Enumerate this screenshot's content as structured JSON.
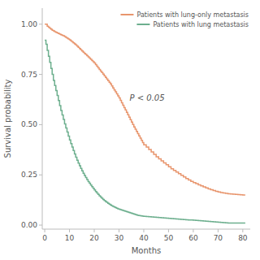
{
  "chart_data": {
    "type": "step",
    "xlabel": "Months",
    "ylabel": "Survival probability",
    "annotation": "P < 0.05",
    "xlim": [
      -1,
      83
    ],
    "ylim": [
      -0.02,
      1.08
    ],
    "xticks": [
      0,
      10,
      20,
      30,
      40,
      50,
      60,
      70,
      80
    ],
    "yticks": [
      {
        "value": 0,
        "label": "0.00"
      },
      0.25,
      {
        "value": 0.5,
        "label": "0.50"
      },
      0.75,
      {
        "value": 1,
        "label": "1.00"
      }
    ],
    "grid": false,
    "legend": "upper right",
    "x": [
      0,
      0.5,
      1,
      1.5,
      2,
      2.5,
      3,
      3.5,
      4,
      4.5,
      5,
      5.5,
      6,
      6.5,
      7,
      7.5,
      8,
      8.5,
      9,
      9.5,
      10,
      10.5,
      11,
      11.5,
      12,
      12.5,
      13,
      13.5,
      14,
      14.5,
      15,
      15.5,
      16,
      16.5,
      17,
      17.5,
      18,
      18.5,
      19,
      19.5,
      20,
      20.5,
      21,
      21.5,
      22,
      22.5,
      23,
      23.5,
      24,
      24.5,
      25,
      25.5,
      26,
      26.5,
      27,
      27.5,
      28,
      28.5,
      29,
      29.5,
      30,
      30.5,
      31,
      31.5,
      32,
      32.5,
      33,
      33.5,
      34,
      34.5,
      35,
      35.5,
      36,
      36.5,
      37,
      37.5,
      38,
      38.5,
      39,
      39.5,
      40,
      41,
      42,
      43,
      44,
      45,
      46,
      47,
      48,
      49,
      50,
      51,
      52,
      53,
      54,
      55,
      56,
      57,
      58,
      59,
      60,
      61,
      62,
      63,
      64,
      65,
      66,
      67,
      68,
      69,
      70,
      71,
      72,
      73,
      74,
      75,
      76,
      77,
      78,
      79,
      80,
      81
    ],
    "series": [
      {
        "name": "Patients with lung-only metastasis",
        "color": "#E8956D",
        "values": [
          1.0,
          1.0,
          0.99,
          0.985,
          0.98,
          0.975,
          0.97,
          0.967,
          0.963,
          0.96,
          0.957,
          0.954,
          0.951,
          0.948,
          0.945,
          0.942,
          0.938,
          0.934,
          0.93,
          0.926,
          0.922,
          0.917,
          0.912,
          0.907,
          0.902,
          0.897,
          0.891,
          0.885,
          0.879,
          0.873,
          0.867,
          0.861,
          0.855,
          0.849,
          0.843,
          0.837,
          0.831,
          0.825,
          0.819,
          0.813,
          0.807,
          0.799,
          0.791,
          0.783,
          0.775,
          0.767,
          0.759,
          0.751,
          0.743,
          0.735,
          0.727,
          0.719,
          0.711,
          0.703,
          0.693,
          0.683,
          0.673,
          0.663,
          0.653,
          0.643,
          0.633,
          0.621,
          0.609,
          0.597,
          0.585,
          0.573,
          0.561,
          0.549,
          0.537,
          0.525,
          0.513,
          0.501,
          0.489,
          0.477,
          0.466,
          0.455,
          0.444,
          0.433,
          0.422,
          0.411,
          0.4,
          0.388,
          0.376,
          0.364,
          0.352,
          0.34,
          0.33,
          0.32,
          0.31,
          0.3,
          0.29,
          0.28,
          0.272,
          0.264,
          0.256,
          0.248,
          0.24,
          0.232,
          0.225,
          0.218,
          0.212,
          0.206,
          0.2,
          0.195,
          0.19,
          0.185,
          0.18,
          0.176,
          0.172,
          0.168,
          0.165,
          0.162,
          0.16,
          0.158,
          0.156,
          0.155,
          0.154,
          0.153,
          0.152,
          0.151,
          0.15,
          0.15
        ]
      },
      {
        "name": "Patients with lung metastasis",
        "color": "#6DAF8E",
        "values": [
          0.92,
          0.9,
          0.87,
          0.84,
          0.81,
          0.78,
          0.75,
          0.72,
          0.695,
          0.67,
          0.645,
          0.62,
          0.595,
          0.57,
          0.548,
          0.526,
          0.504,
          0.483,
          0.463,
          0.443,
          0.424,
          0.406,
          0.388,
          0.371,
          0.354,
          0.338,
          0.323,
          0.309,
          0.295,
          0.282,
          0.27,
          0.258,
          0.247,
          0.237,
          0.227,
          0.217,
          0.208,
          0.199,
          0.191,
          0.183,
          0.175,
          0.167,
          0.16,
          0.153,
          0.146,
          0.14,
          0.134,
          0.128,
          0.123,
          0.118,
          0.113,
          0.108,
          0.104,
          0.1,
          0.096,
          0.093,
          0.09,
          0.087,
          0.084,
          0.081,
          0.079,
          0.077,
          0.075,
          0.073,
          0.071,
          0.069,
          0.067,
          0.065,
          0.063,
          0.061,
          0.059,
          0.057,
          0.055,
          0.053,
          0.051,
          0.049,
          0.048,
          0.047,
          0.046,
          0.045,
          0.044,
          0.043,
          0.042,
          0.041,
          0.04,
          0.039,
          0.038,
          0.037,
          0.036,
          0.035,
          0.034,
          0.033,
          0.032,
          0.031,
          0.03,
          0.029,
          0.028,
          0.027,
          0.026,
          0.025,
          0.024,
          0.023,
          0.022,
          0.021,
          0.02,
          0.019,
          0.018,
          0.017,
          0.016,
          0.015,
          0.014,
          0.013,
          0.012,
          0.011,
          0.01,
          0.01,
          0.01,
          0.01,
          0.01,
          0.01,
          0.01,
          0.01
        ]
      }
    ]
  }
}
